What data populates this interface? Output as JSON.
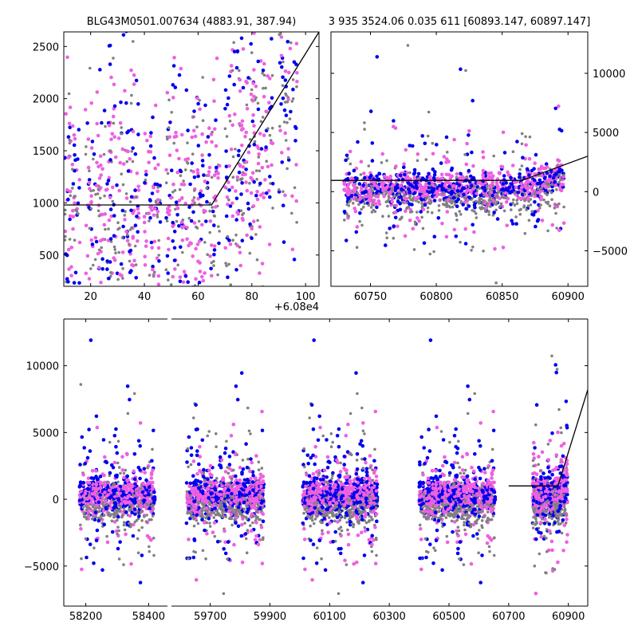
{
  "titles": {
    "left": "BLG43M0501.007634 (4883.91, 387.94)",
    "right": "3 935 3524.06 0.035 611 [60893.147, 60897.147]"
  },
  "colors": {
    "grey": "#808080",
    "blue": "#0000ee",
    "pink": "#ee60e0",
    "model": "#000000"
  },
  "chart_data": [
    {
      "type": "scatter",
      "panel": "top-left",
      "title": "BLG43M0501.007634 (4883.91, 387.94)",
      "x_offset_label": "+6.08e4",
      "xlim": [
        60810,
        60905
      ],
      "ylim": [
        200,
        2640
      ],
      "xticks": [
        20,
        40,
        60,
        80,
        100
      ],
      "xtick_labels": [
        "20",
        "40",
        "60",
        "80",
        "100"
      ],
      "yticks": [
        500,
        1000,
        1500,
        2000,
        2500
      ],
      "ytick_labels": [
        "500",
        "1000",
        "1500",
        "2000",
        "2500"
      ],
      "y_axis_side": "left",
      "clusters": [
        {
          "x0": 60810,
          "x1": 60816,
          "n": 90
        },
        {
          "x0": 60818,
          "x1": 60838,
          "n": 300
        },
        {
          "x0": 60840,
          "x1": 60846,
          "n": 80
        },
        {
          "x0": 60848,
          "x1": 60868,
          "n": 280
        },
        {
          "x0": 60870,
          "x1": 60888,
          "n": 260
        },
        {
          "x0": 60890,
          "x1": 60897,
          "n": 90
        }
      ],
      "model": [
        [
          60810,
          980
        ],
        [
          60865,
          980
        ],
        [
          60905,
          2640
        ]
      ]
    },
    {
      "type": "scatter",
      "panel": "top-right",
      "title": "3 935 3524.06 0.035 611 [60893.147, 60897.147]",
      "xlim": [
        60720,
        60915
      ],
      "ylim": [
        -8000,
        13500
      ],
      "xticks": [
        60750,
        60800,
        60850,
        60900
      ],
      "xtick_labels": [
        "60750",
        "60800",
        "60850",
        "60900"
      ],
      "yticks": [
        -5000,
        0,
        5000,
        10000
      ],
      "ytick_labels": [
        "−5000",
        "0",
        "5000",
        "10000"
      ],
      "y_axis_side": "right",
      "clusters": [
        {
          "x0": 60730,
          "x1": 60897,
          "n": 1500
        }
      ],
      "model": [
        [
          60720,
          950
        ],
        [
          60865,
          950
        ],
        [
          60915,
          3000
        ]
      ]
    },
    {
      "type": "scatter",
      "panel": "bottom",
      "xlim_segments": [
        [
          58130,
          58460
        ],
        [
          59570,
          60965
        ]
      ],
      "ylim": [
        -8000,
        13500
      ],
      "xticks": [
        58200,
        58400,
        59700,
        59900,
        60100,
        60300,
        60500,
        60700,
        60900
      ],
      "xtick_labels": [
        "58200",
        "58400",
        "59700",
        "59900",
        "60100",
        "60300",
        "60500",
        "60700",
        "60900"
      ],
      "yticks": [
        -5000,
        0,
        5000,
        10000
      ],
      "ytick_labels": [
        "−5000",
        "0",
        "5000",
        "10000"
      ],
      "y_axis_side": "left",
      "clusters": [
        {
          "x0": 58180,
          "x1": 58420,
          "n": 900
        },
        {
          "x0": 59620,
          "x1": 59880,
          "n": 1100
        },
        {
          "x0": 60010,
          "x1": 60260,
          "n": 1200
        },
        {
          "x0": 60400,
          "x1": 60655,
          "n": 1100
        },
        {
          "x0": 60780,
          "x1": 60897,
          "n": 800
        }
      ],
      "model": [
        [
          60700,
          1000
        ],
        [
          60865,
          1000
        ],
        [
          60965,
          8200
        ]
      ]
    }
  ]
}
